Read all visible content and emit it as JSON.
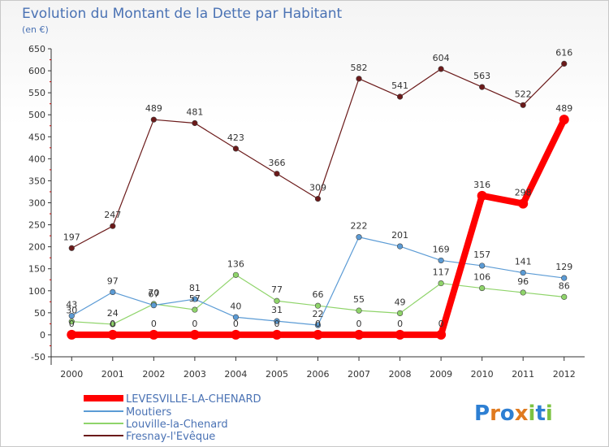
{
  "chart_data": {
    "type": "line",
    "title": "Evolution du Montant de la Dette par Habitant",
    "subtitle": "(en €)",
    "x": [
      "2000",
      "2001",
      "2002",
      "2003",
      "2004",
      "2005",
      "2006",
      "2007",
      "2008",
      "2009",
      "2010",
      "2011",
      "2012"
    ],
    "ylim": [
      -50,
      650
    ],
    "yticks": [
      -50,
      0,
      50,
      100,
      150,
      200,
      250,
      300,
      350,
      400,
      450,
      500,
      550,
      600,
      650
    ],
    "grid": false,
    "legend_position": "bottom-left",
    "series": [
      {
        "name": "LEVESVILLE-LA-CHENARD",
        "color": "#ff0000",
        "emphasis": true,
        "values": [
          0,
          0,
          0,
          0,
          0,
          0,
          0,
          0,
          0,
          0,
          316,
          298,
          489
        ]
      },
      {
        "name": "Moutiers",
        "color": "#5b9bd5",
        "emphasis": false,
        "values": [
          43,
          97,
          67,
          81,
          40,
          31,
          22,
          222,
          201,
          169,
          157,
          141,
          129
        ]
      },
      {
        "name": "Louville-la-Chenard",
        "color": "#8fd46a",
        "emphasis": false,
        "values": [
          30,
          24,
          70,
          57,
          136,
          77,
          66,
          55,
          49,
          117,
          106,
          96,
          86
        ]
      },
      {
        "name": "Fresnay-l'Evêque",
        "color": "#6b1a1a",
        "emphasis": false,
        "values": [
          197,
          247,
          489,
          481,
          423,
          366,
          309,
          582,
          541,
          604,
          563,
          522,
          616
        ]
      }
    ]
  },
  "logo": {
    "letters": [
      "P",
      "r",
      "o",
      "x",
      "i",
      "t",
      "i"
    ],
    "colors": [
      "#2d7fd3",
      "#e07a1f",
      "#2d7fd3",
      "#e07a1f",
      "#7cc242",
      "#2d7fd3",
      "#7cc242"
    ]
  }
}
